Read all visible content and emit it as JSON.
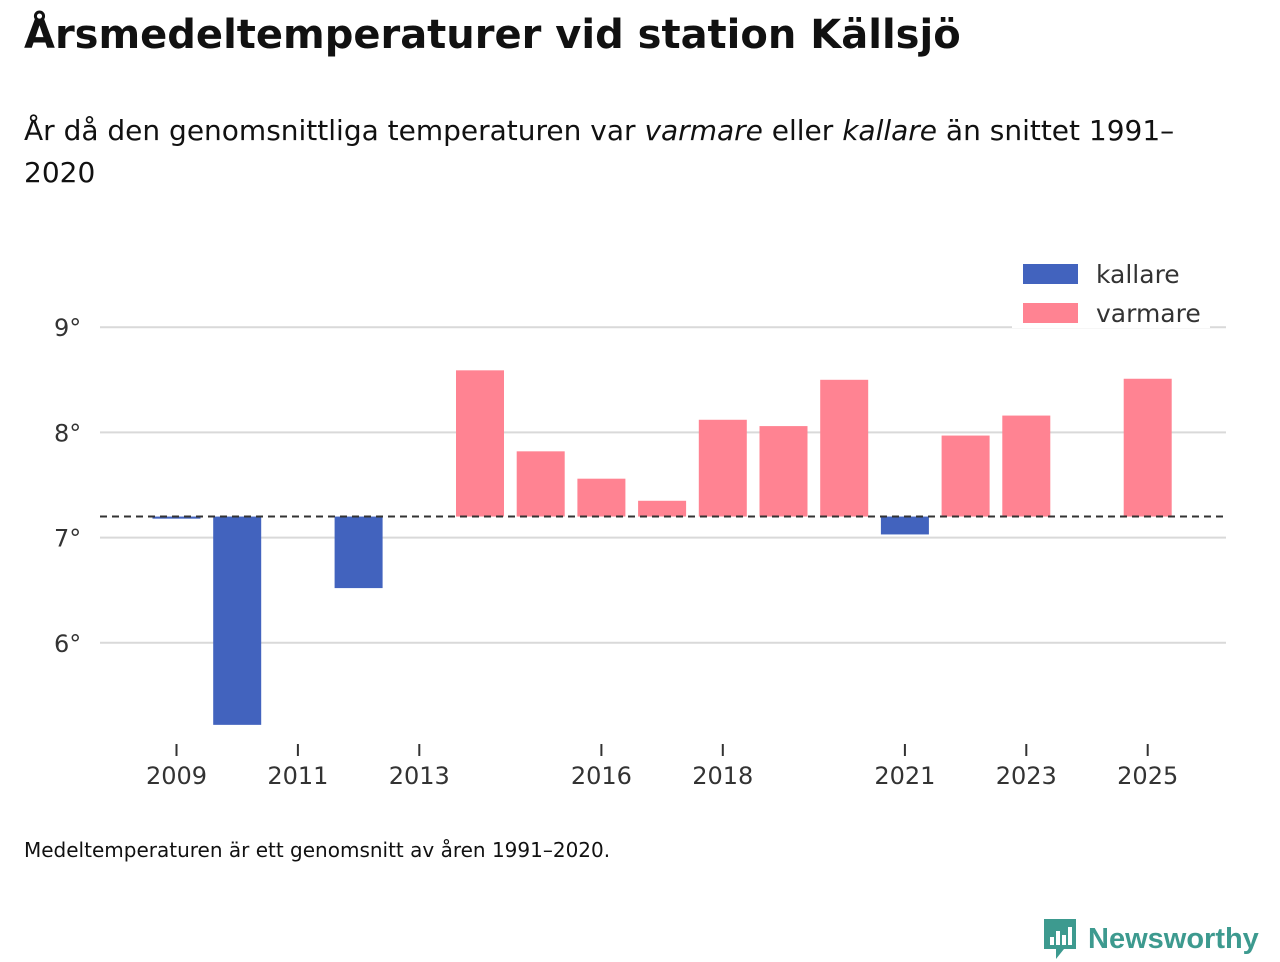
{
  "title": "Årsmedeltemperaturer vid station Källsjö",
  "subtitle": {
    "part1": "År då den genomsnittliga temperaturen var ",
    "warmer_word": "varmare",
    "part2": " eller ",
    "colder_word": "kallare",
    "part3": " än snittet 1991–2020"
  },
  "footnote": "Medeltemperaturen är ett genomsnitt av åren 1991–2020.",
  "brand": {
    "name": "Newsworthy",
    "icon": "newsworthy-logo-icon",
    "color": "#3d9a8f"
  },
  "chart_data": {
    "type": "bar",
    "title": "Årsmedeltemperaturer vid station Källsjö",
    "xlabel": "",
    "ylabel": "",
    "baseline": 7.2,
    "ylim": [
      5.0,
      9.0
    ],
    "yticks": [
      6,
      7,
      8,
      9
    ],
    "ytick_labels": [
      "6°",
      "7°",
      "8°",
      "9°"
    ],
    "xlim": [
      2008,
      2026
    ],
    "xticks": [
      2009,
      2011,
      2013,
      2016,
      2018,
      2021,
      2023,
      2025
    ],
    "xtick_labels": [
      "2009",
      "2011",
      "2013",
      "2016",
      "2018",
      "2021",
      "2023",
      "2025"
    ],
    "grid": true,
    "legend_position": "top-right",
    "series": [
      {
        "name": "kallare",
        "color": "#4263be"
      },
      {
        "name": "varmare",
        "color": "#ff8392"
      }
    ],
    "bars": [
      {
        "year": 2009,
        "value": 7.18,
        "series": "kallare"
      },
      {
        "year": 2010,
        "value": 5.22,
        "series": "kallare"
      },
      {
        "year": 2012,
        "value": 6.52,
        "series": "kallare"
      },
      {
        "year": 2014,
        "value": 8.59,
        "series": "varmare"
      },
      {
        "year": 2015,
        "value": 7.82,
        "series": "varmare"
      },
      {
        "year": 2016,
        "value": 7.56,
        "series": "varmare"
      },
      {
        "year": 2017,
        "value": 7.35,
        "series": "varmare"
      },
      {
        "year": 2018,
        "value": 8.12,
        "series": "varmare"
      },
      {
        "year": 2019,
        "value": 8.06,
        "series": "varmare"
      },
      {
        "year": 2020,
        "value": 8.5,
        "series": "varmare"
      },
      {
        "year": 2021,
        "value": 7.03,
        "series": "kallare"
      },
      {
        "year": 2022,
        "value": 7.97,
        "series": "varmare"
      },
      {
        "year": 2023,
        "value": 8.16,
        "series": "varmare"
      },
      {
        "year": 2025,
        "value": 8.51,
        "series": "varmare"
      }
    ]
  }
}
